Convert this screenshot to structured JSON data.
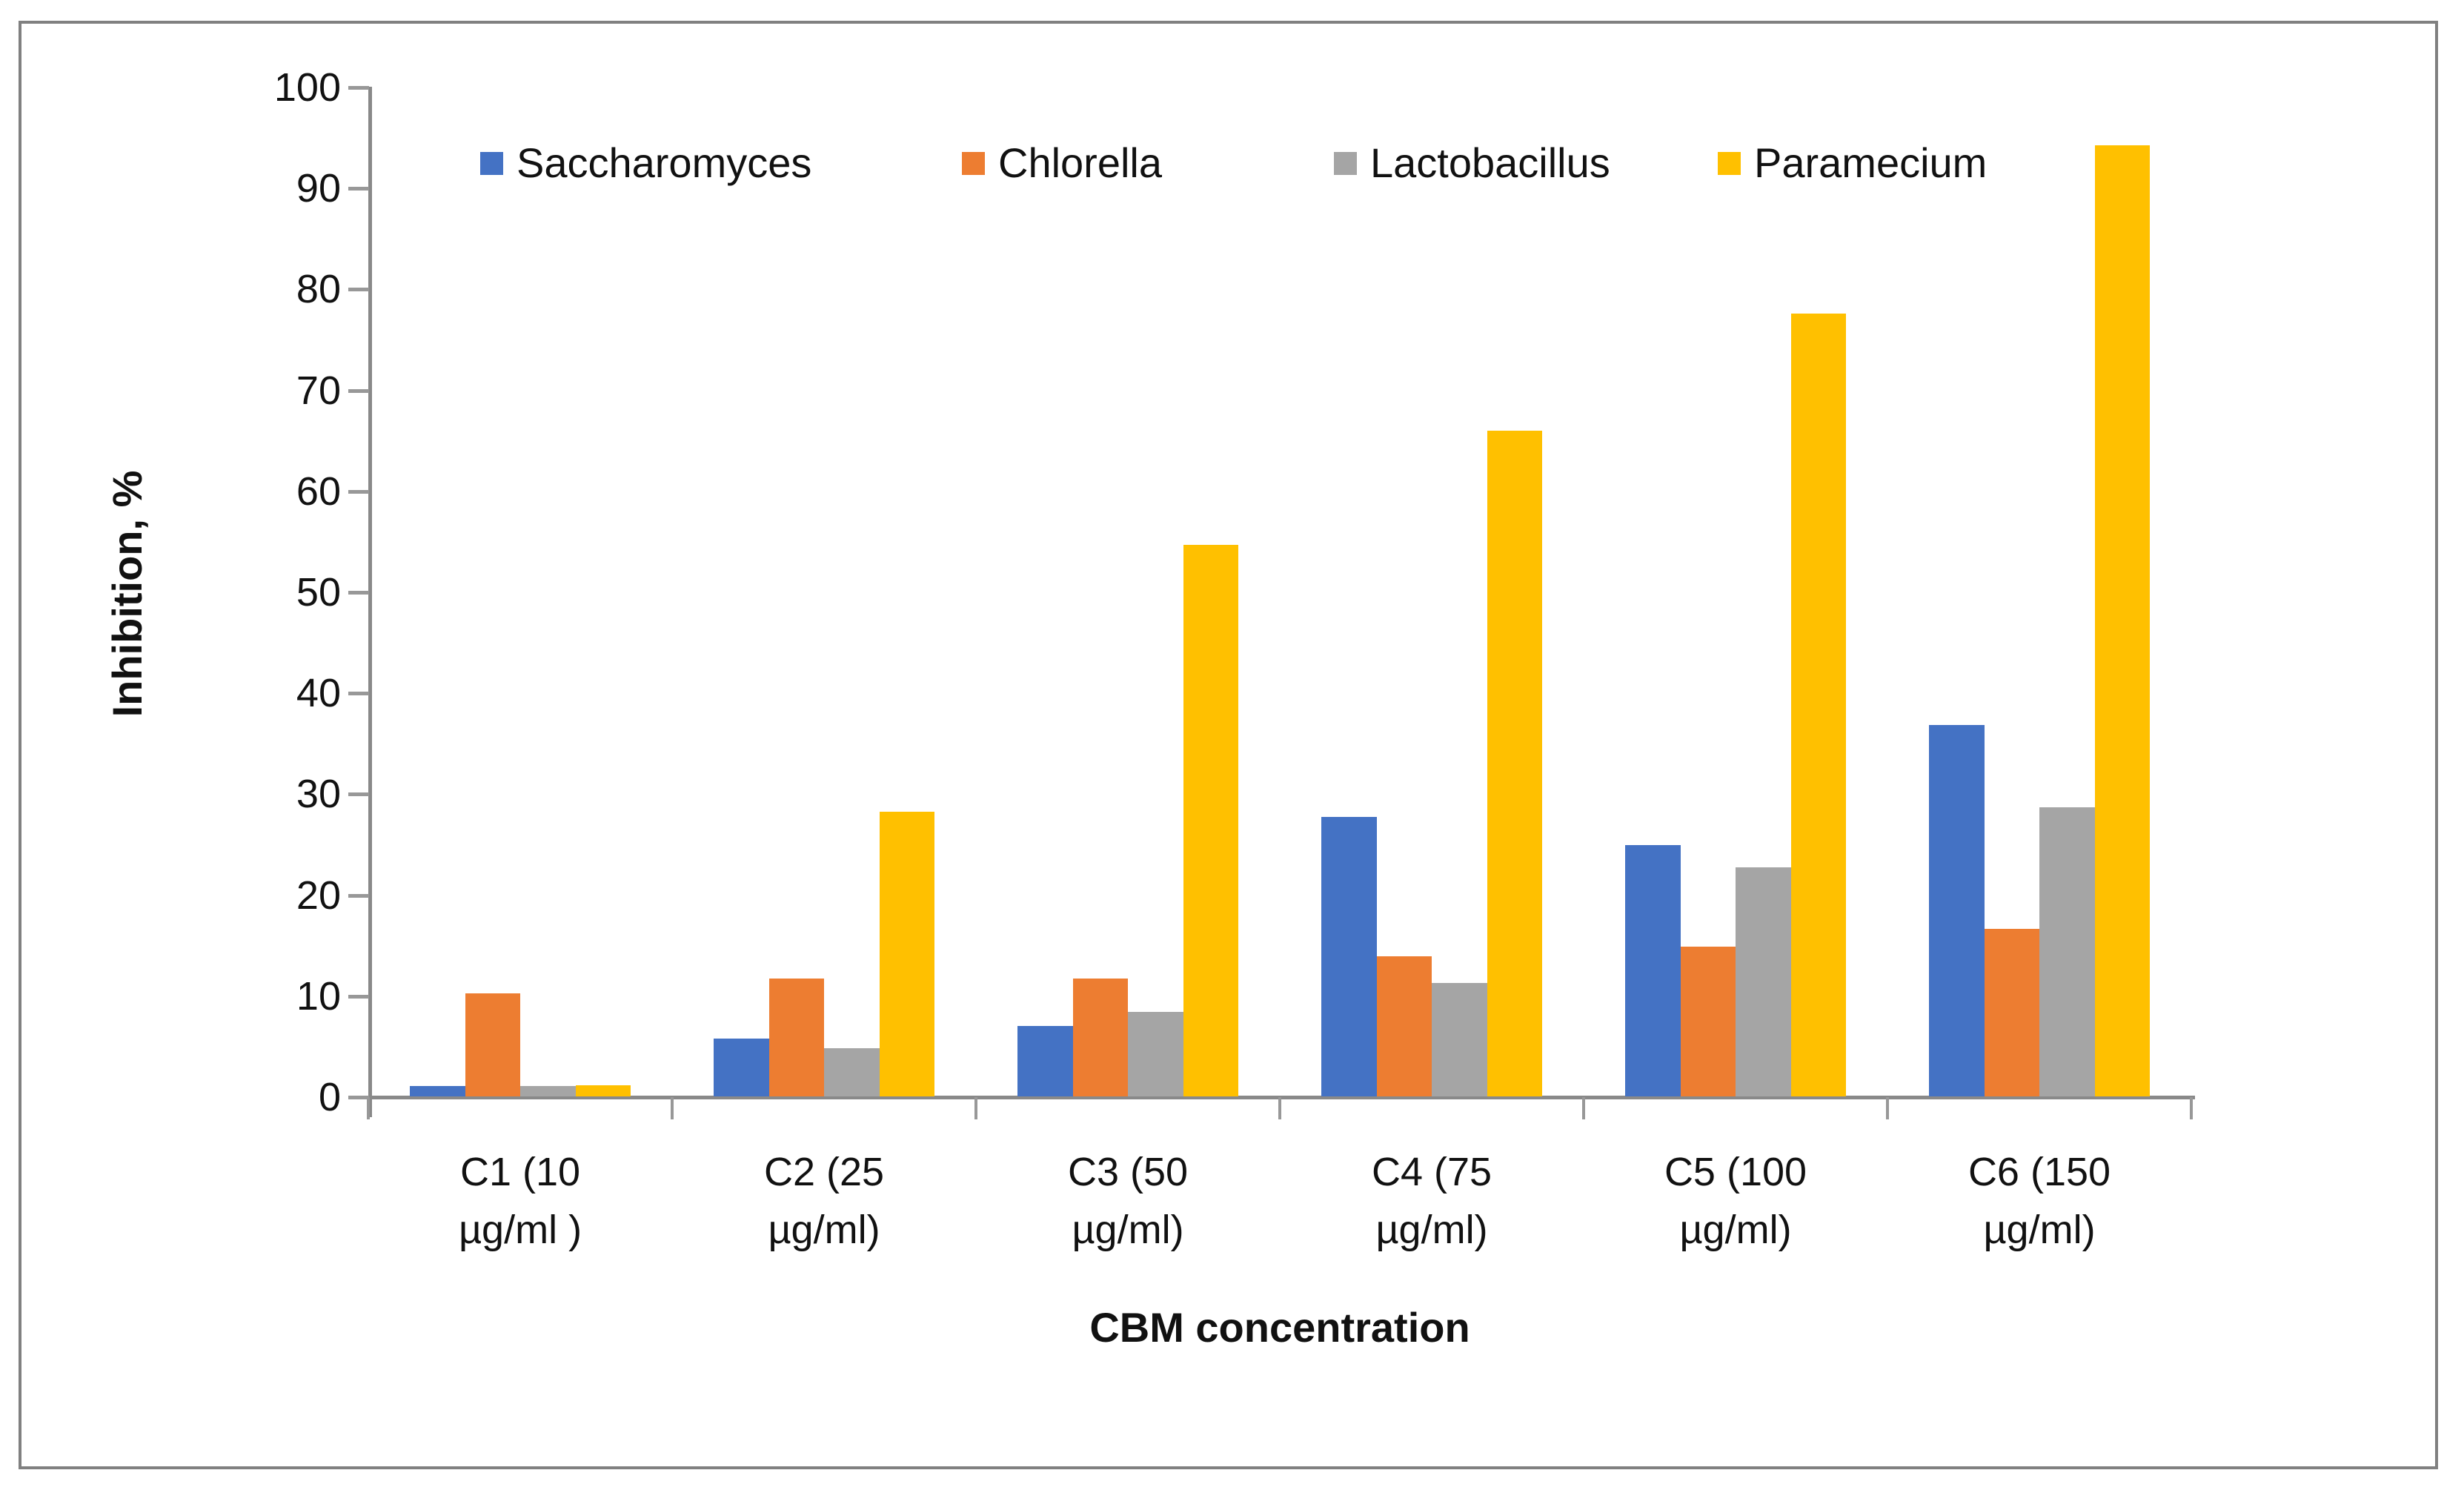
{
  "chart_data": {
    "type": "bar",
    "title": "",
    "xlabel": "CBM concentration",
    "ylabel": "Inhibition, %",
    "ylim": [
      0,
      100
    ],
    "ytick_step": 10,
    "yticks": [
      0,
      10,
      20,
      30,
      40,
      50,
      60,
      70,
      80,
      90,
      100
    ],
    "grid": false,
    "legend_position": "top",
    "categories": [
      {
        "lines": [
          "C1 (10",
          "µg/ml )"
        ]
      },
      {
        "lines": [
          "C2 (25",
          "µg/ml)"
        ]
      },
      {
        "lines": [
          "C3 (50",
          "µg/ml)"
        ]
      },
      {
        "lines": [
          "C4 (75",
          "µg/ml)"
        ]
      },
      {
        "lines": [
          "C5 (100",
          "µg/ml)"
        ]
      },
      {
        "lines": [
          "C6 (150",
          "µg/ml)"
        ]
      }
    ],
    "series": [
      {
        "name": "Saccharomyces",
        "color": "#4472C4",
        "values": [
          1.0,
          5.7,
          7.0,
          27.7,
          24.9,
          36.8
        ]
      },
      {
        "name": "Chlorella",
        "color": "#ED7D31",
        "values": [
          10.2,
          11.7,
          11.7,
          13.9,
          14.8,
          16.6
        ]
      },
      {
        "name": "Lactobacillus",
        "color": "#A5A5A5",
        "values": [
          1.0,
          4.8,
          8.4,
          11.2,
          22.7,
          28.6
        ]
      },
      {
        "name": "Paramecium",
        "color": "#FFC000",
        "values": [
          1.1,
          28.2,
          54.6,
          65.9,
          77.5,
          94.2
        ]
      }
    ]
  },
  "colors": {
    "axis": "#898989",
    "border": "#808080",
    "text": "#111111",
    "background": "#ffffff"
  }
}
